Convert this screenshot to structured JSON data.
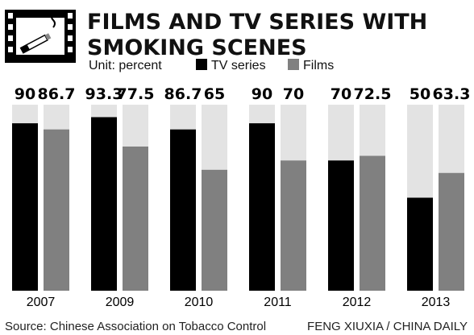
{
  "title": {
    "line1": "FILMS AND TV SERIES WITH",
    "line2": "SMOKING SCENES"
  },
  "unit": "Unit: percent",
  "icon": "film-strip-cigarette-icon",
  "colors": {
    "tv": "#000000",
    "films": "#808080",
    "track": "#e3e3e3"
  },
  "chart_data": {
    "type": "bar",
    "categories": [
      "2007",
      "2009",
      "2010",
      "2011",
      "2012",
      "2013"
    ],
    "series": [
      {
        "name": "TV series",
        "values": [
          90,
          93.3,
          86.7,
          90,
          70,
          50
        ]
      },
      {
        "name": "Films",
        "values": [
          86.7,
          77.5,
          65,
          70,
          72.5,
          63.3
        ]
      }
    ],
    "value_labels": [
      [
        "90",
        "93.3",
        "86.7",
        "90",
        "70",
        "50"
      ],
      [
        "86.7",
        "77.5",
        "65",
        "70",
        "72.5",
        "63.3"
      ]
    ],
    "ylim": [
      0,
      100
    ],
    "legend_position": "top"
  },
  "source": "Source: Chinese Association on Tobacco Control",
  "credit": "FENG XIUXIA / CHINA DAILY"
}
